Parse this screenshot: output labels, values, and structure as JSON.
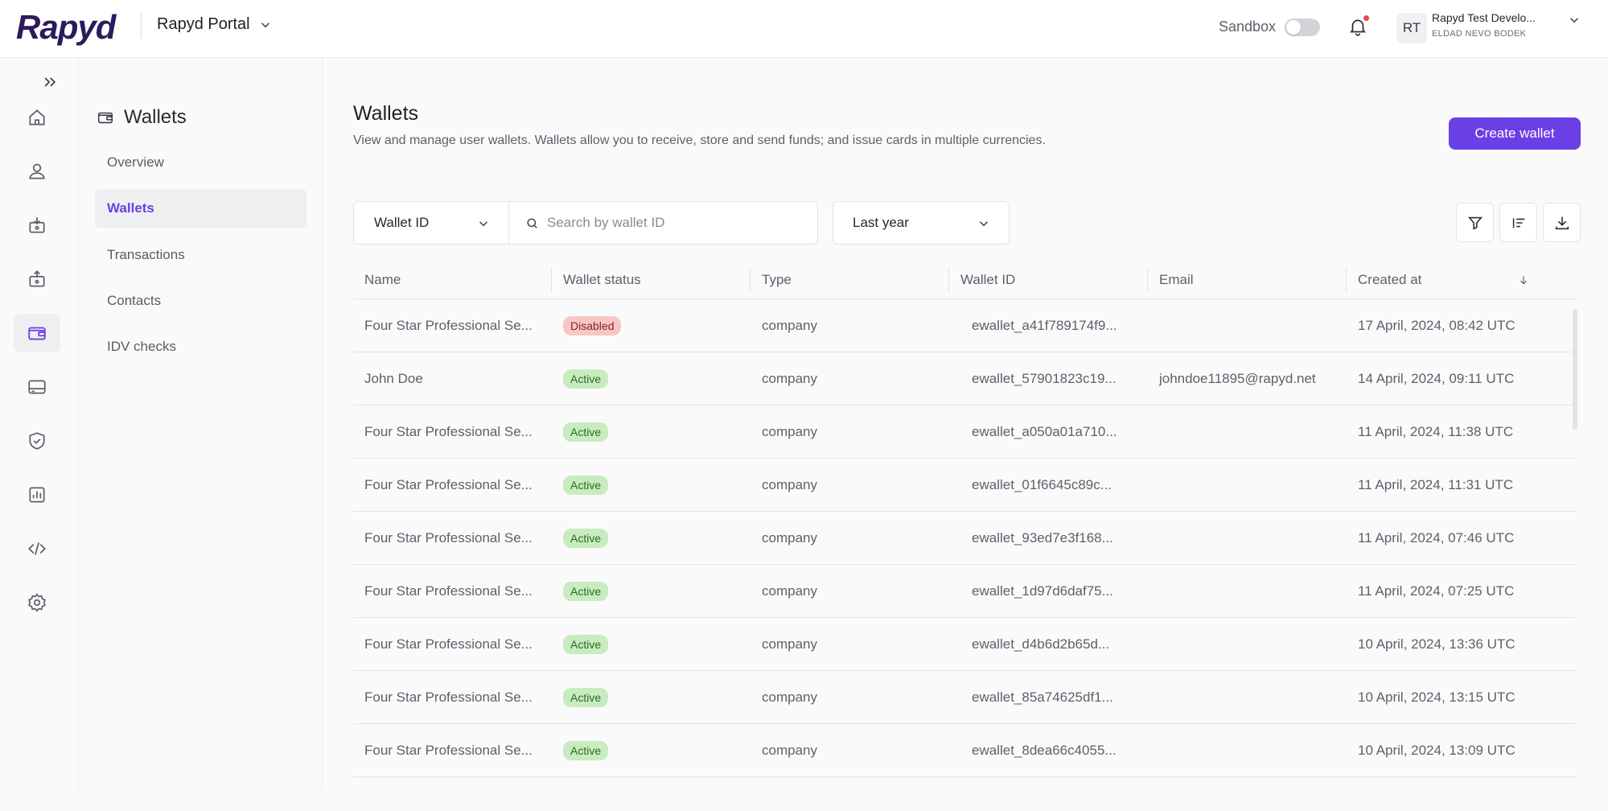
{
  "header": {
    "logo": "Rapyd",
    "portal_name": "Rapyd Portal",
    "sandbox_label": "Sandbox",
    "avatar_initials": "RT",
    "account_name": "Rapyd Test Develo...",
    "account_user": "ELDAD NEVO BODEK"
  },
  "rail": {
    "items": [
      "home-icon",
      "user-icon",
      "collect-icon",
      "disburse-icon",
      "wallet-icon",
      "card-icon",
      "shield-check-icon",
      "reports-icon",
      "code-icon",
      "settings-icon"
    ],
    "active": "wallet-icon"
  },
  "subnav": {
    "title": "Wallets",
    "items": [
      "Overview",
      "Wallets",
      "Transactions",
      "Contacts",
      "IDV checks"
    ],
    "active": "Wallets"
  },
  "page": {
    "title": "Wallets",
    "description": "View and manage user wallets. Wallets allow you to receive, store and send funds; and issue cards in multiple currencies.",
    "create_button": "Create wallet"
  },
  "filters": {
    "field_select": "Wallet ID",
    "search_placeholder": "Search by wallet ID",
    "period": "Last year"
  },
  "table": {
    "columns": [
      "Name",
      "Wallet status",
      "Type",
      "Wallet ID",
      "Email",
      "Created at"
    ],
    "rows": [
      {
        "name": "Four Star Professional Se...",
        "status": "Disabled",
        "type": "company",
        "wallet_id": "ewallet_a41f789174f9...",
        "email": "",
        "created": "17 April, 2024, 08:42 UTC"
      },
      {
        "name": "John Doe",
        "status": "Active",
        "type": "company",
        "wallet_id": "ewallet_57901823c19...",
        "email": "johndoe11895@rapyd.net",
        "created": "14 April, 2024, 09:11 UTC"
      },
      {
        "name": "Four Star Professional Se...",
        "status": "Active",
        "type": "company",
        "wallet_id": "ewallet_a050a01a710...",
        "email": "",
        "created": "11 April, 2024, 11:38 UTC"
      },
      {
        "name": "Four Star Professional Se...",
        "status": "Active",
        "type": "company",
        "wallet_id": "ewallet_01f6645c89c...",
        "email": "",
        "created": "11 April, 2024, 11:31 UTC"
      },
      {
        "name": "Four Star Professional Se...",
        "status": "Active",
        "type": "company",
        "wallet_id": "ewallet_93ed7e3f168...",
        "email": "",
        "created": "11 April, 2024, 07:46 UTC"
      },
      {
        "name": "Four Star Professional Se...",
        "status": "Active",
        "type": "company",
        "wallet_id": "ewallet_1d97d6daf75...",
        "email": "",
        "created": "11 April, 2024, 07:25 UTC"
      },
      {
        "name": "Four Star Professional Se...",
        "status": "Active",
        "type": "company",
        "wallet_id": "ewallet_d4b6d2b65d...",
        "email": "",
        "created": "10 April, 2024, 13:36 UTC"
      },
      {
        "name": "Four Star Professional Se...",
        "status": "Active",
        "type": "company",
        "wallet_id": "ewallet_85a74625df1...",
        "email": "",
        "created": "10 April, 2024, 13:15 UTC"
      },
      {
        "name": "Four Star Professional Se...",
        "status": "Active",
        "type": "company",
        "wallet_id": "ewallet_8dea66c4055...",
        "email": "",
        "created": "10 April, 2024, 13:09 UTC"
      }
    ]
  },
  "colors": {
    "accent": "#6a3fe6",
    "active_badge": "#c8ecbf",
    "disabled_badge": "#f7c6c6"
  }
}
